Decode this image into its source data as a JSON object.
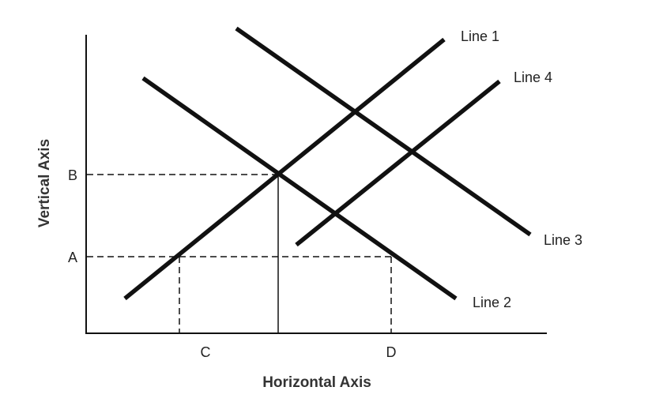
{
  "diagram": {
    "axes": {
      "x_label": "Horizontal Axis",
      "y_label": "Vertical Axis"
    },
    "y_ticks": [
      "B",
      "A"
    ],
    "x_ticks": [
      "C",
      "D"
    ],
    "lines": [
      {
        "label": "Line 1",
        "slope": "upward"
      },
      {
        "label": "Line 2",
        "slope": "downward"
      },
      {
        "label": "Line 3",
        "slope": "downward"
      },
      {
        "label": "Line 4",
        "slope": "upward"
      }
    ],
    "guides": {
      "B_to_intersection": "dashed",
      "intersection_to_x_axis": "solid",
      "A_to_D": "dashed",
      "C_vertical": "dashed",
      "D_vertical": "dashed"
    },
    "line_color": "#111111"
  }
}
